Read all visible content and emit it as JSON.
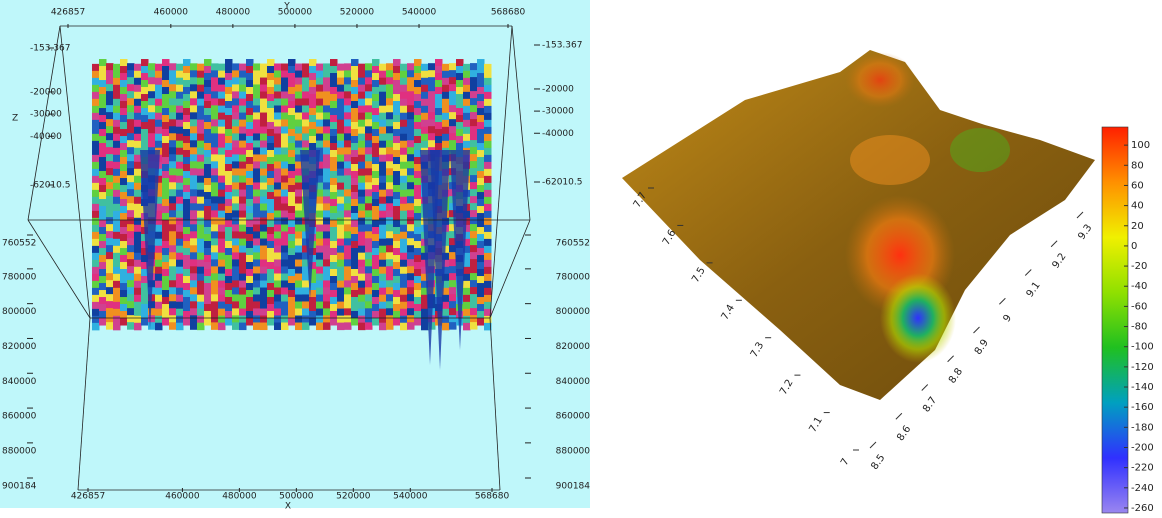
{
  "chart_data": [
    {
      "type": "surface3d",
      "x_label": "X",
      "y_label": "Y",
      "z_label": "Z",
      "xlim": [
        426857,
        568680
      ],
      "xticks": [
        426857,
        460000,
        480000,
        500000,
        520000,
        540000,
        568680
      ],
      "ylim": [
        760552,
        900184
      ],
      "yticks": [
        760552,
        780000,
        800000,
        820000,
        840000,
        860000,
        880000,
        900184
      ],
      "zlim": [
        -62010.5,
        -153.367
      ],
      "zticks": [
        -153.367,
        -20000,
        -30000,
        -40000,
        -62010.5
      ],
      "background": "#bff7fa"
    },
    {
      "type": "surface3d",
      "xlim": [
        8.5,
        9.3
      ],
      "xticks": [
        8.5,
        8.6,
        8.7,
        8.8,
        8.9,
        9,
        9.1,
        9.2,
        9.3
      ],
      "ylim": [
        7,
        7.7
      ],
      "yticks": [
        7,
        7.1,
        7.2,
        7.3,
        7.4,
        7.5,
        7.6,
        7.7
      ],
      "colorbar": {
        "lim": [
          -265,
          118
        ],
        "ticks": [
          100,
          80,
          60,
          40,
          20,
          0,
          -20,
          -40,
          -60,
          -80,
          -100,
          -120,
          -140,
          -160,
          -180,
          -200,
          -220,
          -240,
          -260
        ],
        "colors": [
          "#9a86f0",
          "#3030ff",
          "#00a0c0",
          "#20c020",
          "#90e000",
          "#f0f000",
          "#ff9000",
          "#ff2000"
        ]
      }
    }
  ]
}
